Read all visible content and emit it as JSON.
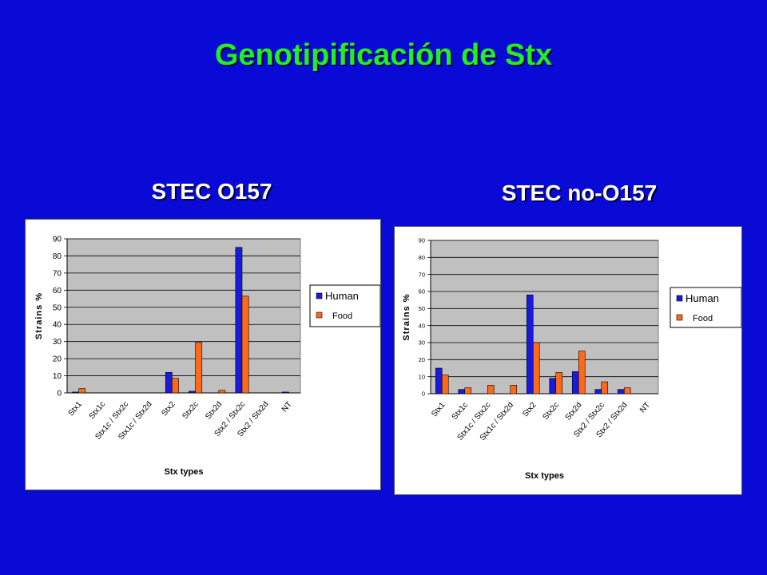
{
  "slide": {
    "title": "Genotipificación de Stx"
  },
  "colors": {
    "background": "#0a0ad6",
    "title": "#22ee22",
    "plot_area": "#c0c0c0",
    "human": "#1a1adc",
    "food": "#ff6a1a"
  },
  "chart_data": [
    {
      "heading": "STEC O157",
      "type": "bar",
      "categories": [
        "Stx1",
        "Stx1c",
        "Stx1c / Stx2c",
        "Stx1c / Stx2d",
        "Stx2",
        "Stx2c",
        "Stx2d",
        "Stx2 / Stx2c",
        "Stx2 / Stx2d",
        "NT"
      ],
      "series": [
        {
          "name": "Human",
          "values": [
            0.5,
            0,
            0,
            0,
            12,
            1,
            0,
            85,
            0,
            0.5
          ]
        },
        {
          "name": "Food",
          "values": [
            2.5,
            0,
            0,
            0,
            8.5,
            29.5,
            1.5,
            56.5,
            0,
            0
          ]
        }
      ],
      "xlabel": "Stx types",
      "ylabel": "Strains %",
      "ylim": [
        0,
        90
      ],
      "yticks": [
        0,
        10,
        20,
        30,
        40,
        50,
        60,
        70,
        80,
        90
      ],
      "grid": true,
      "legend": "right"
    },
    {
      "heading": "STEC no-O157",
      "type": "bar",
      "categories": [
        "Stx1",
        "Stx1c",
        "Stx1c / Stx2c",
        "Stx1c / Stx2d",
        "Stx2",
        "Stx2c",
        "Stx2d",
        "Stx2 / Stx2c",
        "Stx2 / Stx2d",
        "NT"
      ],
      "series": [
        {
          "name": "Human",
          "values": [
            15,
            2.5,
            0,
            0,
            58,
            9,
            13,
            2.5,
            2.5,
            0
          ]
        },
        {
          "name": "Food",
          "values": [
            11,
            3.5,
            5,
            5,
            30,
            12.5,
            25,
            7,
            3.5,
            0
          ]
        }
      ],
      "xlabel": "Stx types",
      "ylabel": "Strains %",
      "ylim": [
        0,
        90
      ],
      "yticks": [
        0,
        10,
        20,
        30,
        40,
        50,
        60,
        70,
        80,
        90
      ],
      "grid": true,
      "legend": "right"
    }
  ]
}
